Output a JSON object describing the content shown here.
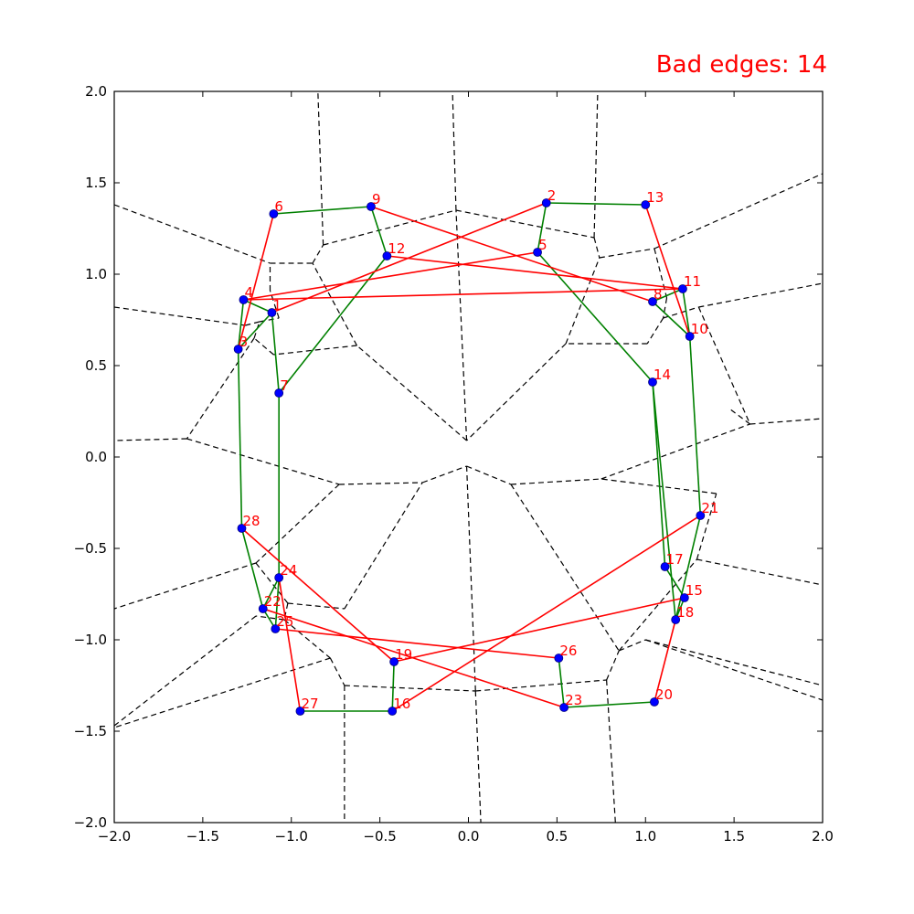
{
  "chart_data": {
    "type": "scatter",
    "title": "Bad edges: 14",
    "xlabel": "",
    "ylabel": "",
    "xlim": [
      -2.0,
      2.0
    ],
    "ylim": [
      -2.0,
      2.0
    ],
    "x_ticks": [
      "−2.0",
      "−1.5",
      "−1.0",
      "−0.5",
      "0.0",
      "0.5",
      "1.0",
      "1.5",
      "2.0"
    ],
    "y_ticks": [
      "2.0",
      "1.5",
      "1.0",
      "0.5",
      "0.0",
      "−0.5",
      "−1.0",
      "−1.5",
      "−2.0"
    ],
    "grid": false,
    "colors": {
      "point": "#0000ff",
      "label": "#ff0000",
      "good_edge": "#008000",
      "bad_edge": "#ff0000",
      "voronoi": "#000000",
      "title": "#ff0000"
    },
    "points": [
      {
        "id": "1",
        "x": -1.11,
        "y": 0.79
      },
      {
        "id": "2",
        "x": 0.44,
        "y": 1.39
      },
      {
        "id": "3",
        "x": -1.3,
        "y": 0.59
      },
      {
        "id": "4",
        "x": -1.27,
        "y": 0.86
      },
      {
        "id": "5",
        "x": 0.39,
        "y": 1.12
      },
      {
        "id": "6",
        "x": -1.1,
        "y": 1.33
      },
      {
        "id": "7",
        "x": -1.07,
        "y": 0.35
      },
      {
        "id": "8",
        "x": 1.04,
        "y": 0.85
      },
      {
        "id": "9",
        "x": -0.55,
        "y": 1.37
      },
      {
        "id": "10",
        "x": 1.25,
        "y": 0.66
      },
      {
        "id": "11",
        "x": 1.21,
        "y": 0.92
      },
      {
        "id": "12",
        "x": -0.46,
        "y": 1.1
      },
      {
        "id": "13",
        "x": 1.0,
        "y": 1.38
      },
      {
        "id": "14",
        "x": 1.04,
        "y": 0.41
      },
      {
        "id": "15",
        "x": 1.22,
        "y": -0.77
      },
      {
        "id": "16",
        "x": -0.43,
        "y": -1.39
      },
      {
        "id": "17",
        "x": 1.11,
        "y": -0.6
      },
      {
        "id": "18",
        "x": 1.17,
        "y": -0.89
      },
      {
        "id": "19",
        "x": -0.42,
        "y": -1.12
      },
      {
        "id": "20",
        "x": 1.05,
        "y": -1.34
      },
      {
        "id": "21",
        "x": 1.31,
        "y": -0.32
      },
      {
        "id": "22",
        "x": -1.16,
        "y": -0.83
      },
      {
        "id": "23",
        "x": 0.54,
        "y": -1.37
      },
      {
        "id": "24",
        "x": -1.07,
        "y": -0.66
      },
      {
        "id": "25",
        "x": -1.09,
        "y": -0.94
      },
      {
        "id": "26",
        "x": 0.51,
        "y": -1.1
      },
      {
        "id": "27",
        "x": -0.95,
        "y": -1.39
      },
      {
        "id": "28",
        "x": -1.28,
        "y": -0.39
      }
    ],
    "edges_good": [
      [
        "6",
        "9"
      ],
      [
        "9",
        "12"
      ],
      [
        "12",
        "7"
      ],
      [
        "7",
        "24"
      ],
      [
        "1",
        "7"
      ],
      [
        "1",
        "3"
      ],
      [
        "3",
        "4"
      ],
      [
        "4",
        "1"
      ],
      [
        "3",
        "28"
      ],
      [
        "28",
        "22"
      ],
      [
        "22",
        "25"
      ],
      [
        "22",
        "24"
      ],
      [
        "24",
        "25"
      ],
      [
        "2",
        "13"
      ],
      [
        "2",
        "5"
      ],
      [
        "5",
        "14"
      ],
      [
        "14",
        "17"
      ],
      [
        "17",
        "15"
      ],
      [
        "15",
        "18"
      ],
      [
        "18",
        "14"
      ],
      [
        "8",
        "11"
      ],
      [
        "11",
        "10"
      ],
      [
        "10",
        "21"
      ],
      [
        "21",
        "18"
      ],
      [
        "8",
        "10"
      ],
      [
        "27",
        "16"
      ],
      [
        "16",
        "19"
      ],
      [
        "23",
        "20"
      ],
      [
        "26",
        "23"
      ]
    ],
    "edges_bad": [
      [
        "6",
        "3"
      ],
      [
        "9",
        "8"
      ],
      [
        "2",
        "1"
      ],
      [
        "4",
        "11"
      ],
      [
        "12",
        "11"
      ],
      [
        "13",
        "10"
      ],
      [
        "28",
        "19"
      ],
      [
        "24",
        "27"
      ],
      [
        "25",
        "26"
      ],
      [
        "22",
        "23"
      ],
      [
        "5",
        "4"
      ],
      [
        "19",
        "15"
      ],
      [
        "16",
        "21"
      ],
      [
        "18",
        "20"
      ]
    ],
    "voronoi_segments": [
      [
        [
          -2.0,
          1.38
        ],
        [
          -1.12,
          1.06
        ]
      ],
      [
        [
          -1.12,
          1.06
        ],
        [
          -0.88,
          1.06
        ]
      ],
      [
        [
          -0.88,
          1.06
        ],
        [
          -0.82,
          1.16
        ]
      ],
      [
        [
          -0.82,
          1.16
        ],
        [
          -0.85,
          2.0
        ]
      ],
      [
        [
          -0.82,
          1.16
        ],
        [
          -0.07,
          1.35
        ]
      ],
      [
        [
          -0.07,
          1.35
        ],
        [
          -0.09,
          2.0
        ]
      ],
      [
        [
          -0.07,
          1.35
        ],
        [
          0.71,
          1.2
        ]
      ],
      [
        [
          0.71,
          1.2
        ],
        [
          0.73,
          2.0
        ]
      ],
      [
        [
          0.71,
          1.2
        ],
        [
          0.74,
          1.09
        ]
      ],
      [
        [
          0.74,
          1.09
        ],
        [
          1.05,
          1.14
        ]
      ],
      [
        [
          1.05,
          1.14
        ],
        [
          2.0,
          1.55
        ]
      ],
      [
        [
          1.05,
          1.14
        ],
        [
          1.12,
          0.87
        ]
      ],
      [
        [
          1.12,
          0.87
        ],
        [
          1.1,
          0.76
        ]
      ],
      [
        [
          1.1,
          0.76
        ],
        [
          1.3,
          0.82
        ]
      ],
      [
        [
          1.3,
          0.82
        ],
        [
          2.0,
          0.95
        ]
      ],
      [
        [
          1.3,
          0.82
        ],
        [
          1.59,
          0.18
        ]
      ],
      [
        [
          1.59,
          0.18
        ],
        [
          2.0,
          0.21
        ]
      ],
      [
        [
          1.59,
          0.18
        ],
        [
          1.48,
          0.26
        ]
      ],
      [
        [
          1.1,
          0.76
        ],
        [
          1.01,
          0.62
        ]
      ],
      [
        [
          1.01,
          0.62
        ],
        [
          0.55,
          0.62
        ]
      ],
      [
        [
          0.55,
          0.62
        ],
        [
          0.74,
          1.09
        ]
      ],
      [
        [
          0.55,
          0.62
        ],
        [
          -0.01,
          0.09
        ]
      ],
      [
        [
          -0.01,
          0.09
        ],
        [
          -0.07,
          1.35
        ]
      ],
      [
        [
          -0.01,
          0.09
        ],
        [
          -0.63,
          0.61
        ]
      ],
      [
        [
          -0.63,
          0.61
        ],
        [
          -0.88,
          1.06
        ]
      ],
      [
        [
          -0.63,
          0.61
        ],
        [
          -1.1,
          0.56
        ]
      ],
      [
        [
          -1.1,
          0.56
        ],
        [
          -1.21,
          0.65
        ]
      ],
      [
        [
          -1.21,
          0.65
        ],
        [
          -1.18,
          0.74
        ]
      ],
      [
        [
          -1.18,
          0.74
        ],
        [
          -1.07,
          0.76
        ]
      ],
      [
        [
          -1.07,
          0.76
        ],
        [
          -1.12,
          0.91
        ]
      ],
      [
        [
          -1.12,
          0.91
        ],
        [
          -1.12,
          1.06
        ]
      ],
      [
        [
          -1.21,
          0.65
        ],
        [
          -1.59,
          0.1
        ]
      ],
      [
        [
          -1.59,
          0.1
        ],
        [
          -2.0,
          0.09
        ]
      ],
      [
        [
          -1.59,
          0.1
        ],
        [
          -0.73,
          -0.15
        ]
      ],
      [
        [
          -2.0,
          0.82
        ],
        [
          -1.26,
          0.72
        ]
      ],
      [
        [
          -1.26,
          0.72
        ],
        [
          -1.18,
          0.74
        ]
      ],
      [
        [
          -0.73,
          -0.15
        ],
        [
          -0.26,
          -0.14
        ]
      ],
      [
        [
          -0.26,
          -0.14
        ],
        [
          -0.01,
          -0.05
        ]
      ],
      [
        [
          -0.01,
          -0.05
        ],
        [
          0.24,
          -0.15
        ]
      ],
      [
        [
          0.24,
          -0.15
        ],
        [
          0.75,
          -0.12
        ]
      ],
      [
        [
          0.75,
          -0.12
        ],
        [
          1.59,
          0.18
        ]
      ],
      [
        [
          -0.73,
          -0.15
        ],
        [
          -1.2,
          -0.58
        ]
      ],
      [
        [
          -1.2,
          -0.58
        ],
        [
          -2.0,
          -0.83
        ]
      ],
      [
        [
          -1.2,
          -0.58
        ],
        [
          -1.02,
          -0.8
        ]
      ],
      [
        [
          -1.02,
          -0.8
        ],
        [
          -0.7,
          -0.83
        ]
      ],
      [
        [
          -0.7,
          -0.83
        ],
        [
          -0.26,
          -0.14
        ]
      ],
      [
        [
          -1.02,
          -0.8
        ],
        [
          -1.04,
          -0.89
        ]
      ],
      [
        [
          -1.04,
          -0.89
        ],
        [
          -1.2,
          -0.87
        ]
      ],
      [
        [
          -1.2,
          -0.87
        ],
        [
          -2.0,
          -1.47
        ]
      ],
      [
        [
          -1.04,
          -0.89
        ],
        [
          -0.78,
          -1.1
        ]
      ],
      [
        [
          -0.78,
          -1.1
        ],
        [
          -2.0,
          -1.48
        ]
      ],
      [
        [
          -0.78,
          -1.1
        ],
        [
          -0.7,
          -1.25
        ]
      ],
      [
        [
          -0.7,
          -1.25
        ],
        [
          -0.7,
          -2.0
        ]
      ],
      [
        [
          -0.7,
          -1.25
        ],
        [
          0.04,
          -1.28
        ]
      ],
      [
        [
          0.04,
          -1.28
        ],
        [
          0.07,
          -2.0
        ]
      ],
      [
        [
          0.04,
          -1.28
        ],
        [
          0.78,
          -1.22
        ]
      ],
      [
        [
          0.78,
          -1.22
        ],
        [
          0.83,
          -2.0
        ]
      ],
      [
        [
          0.78,
          -1.22
        ],
        [
          0.85,
          -1.06
        ]
      ],
      [
        [
          0.85,
          -1.06
        ],
        [
          1.0,
          -1.0
        ]
      ],
      [
        [
          1.0,
          -1.0
        ],
        [
          2.0,
          -1.25
        ]
      ],
      [
        [
          1.0,
          -1.0
        ],
        [
          2.0,
          -1.33
        ]
      ],
      [
        [
          0.85,
          -1.06
        ],
        [
          1.29,
          -0.56
        ]
      ],
      [
        [
          1.29,
          -0.56
        ],
        [
          2.0,
          -0.7
        ]
      ],
      [
        [
          1.29,
          -0.56
        ],
        [
          1.4,
          -0.2
        ]
      ],
      [
        [
          1.4,
          -0.2
        ],
        [
          0.75,
          -0.12
        ]
      ],
      [
        [
          0.24,
          -0.15
        ],
        [
          0.85,
          -1.06
        ]
      ],
      [
        [
          -0.01,
          -0.05
        ],
        [
          0.04,
          -1.28
        ]
      ]
    ]
  }
}
